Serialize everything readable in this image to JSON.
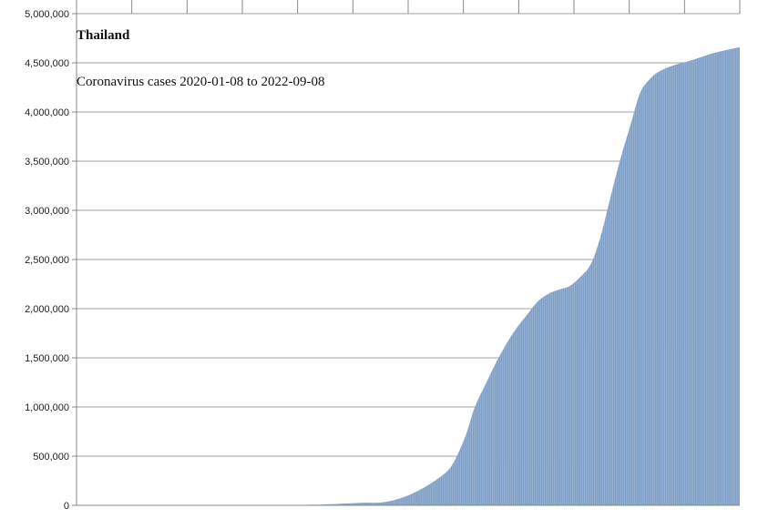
{
  "chart_data": {
    "type": "area",
    "title": "Thailand",
    "subtitle": "Coronavirus cases 2020-01-08 to 2022-09-08",
    "xlabel": "",
    "ylabel": "",
    "x_range": [
      "2020-01-08",
      "2022-09-08"
    ],
    "ylim": [
      0,
      5000000
    ],
    "y_ticks": [
      0,
      500000,
      1000000,
      1500000,
      2000000,
      2500000,
      3000000,
      3500000,
      4000000,
      4500000,
      5000000
    ],
    "y_tick_labels": [
      "0",
      "500,000",
      "1,000,000",
      "1,500,000",
      "2,000,000",
      "2,500,000",
      "3,000,000",
      "3,500,000",
      "4,000,000",
      "4,500,000",
      "5,000,000"
    ],
    "grid": true,
    "legend": "none",
    "colors": {
      "fill": "#7f9fc6",
      "stripe": "#a9bfdc",
      "grid": "#a0a0a0",
      "axis": "#888888"
    },
    "series": [
      {
        "points": [
          {
            "x": "2020-01-08",
            "y": 0
          },
          {
            "x": "2020-04-01",
            "y": 1600
          },
          {
            "x": "2020-07-01",
            "y": 3200
          },
          {
            "x": "2020-10-01",
            "y": 3600
          },
          {
            "x": "2021-01-01",
            "y": 7200
          },
          {
            "x": "2021-03-01",
            "y": 26000
          },
          {
            "x": "2021-04-01",
            "y": 30000
          },
          {
            "x": "2021-05-01",
            "y": 80000
          },
          {
            "x": "2021-06-01",
            "y": 180000
          },
          {
            "x": "2021-07-01",
            "y": 320000
          },
          {
            "x": "2021-07-15",
            "y": 440000
          },
          {
            "x": "2021-08-01",
            "y": 700000
          },
          {
            "x": "2021-08-15",
            "y": 1000000
          },
          {
            "x": "2021-09-01",
            "y": 1250000
          },
          {
            "x": "2021-09-15",
            "y": 1450000
          },
          {
            "x": "2021-10-01",
            "y": 1650000
          },
          {
            "x": "2021-10-15",
            "y": 1800000
          },
          {
            "x": "2021-11-01",
            "y": 1950000
          },
          {
            "x": "2021-11-15",
            "y": 2070000
          },
          {
            "x": "2021-12-01",
            "y": 2150000
          },
          {
            "x": "2021-12-15",
            "y": 2190000
          },
          {
            "x": "2022-01-01",
            "y": 2230000
          },
          {
            "x": "2022-01-15",
            "y": 2310000
          },
          {
            "x": "2022-02-01",
            "y": 2450000
          },
          {
            "x": "2022-02-15",
            "y": 2720000
          },
          {
            "x": "2022-03-01",
            "y": 3100000
          },
          {
            "x": "2022-03-15",
            "y": 3480000
          },
          {
            "x": "2022-04-01",
            "y": 3880000
          },
          {
            "x": "2022-04-15",
            "y": 4200000
          },
          {
            "x": "2022-05-01",
            "y": 4350000
          },
          {
            "x": "2022-05-15",
            "y": 4420000
          },
          {
            "x": "2022-06-01",
            "y": 4470000
          },
          {
            "x": "2022-07-01",
            "y": 4530000
          },
          {
            "x": "2022-08-01",
            "y": 4600000
          },
          {
            "x": "2022-09-08",
            "y": 4660000
          }
        ]
      }
    ]
  }
}
